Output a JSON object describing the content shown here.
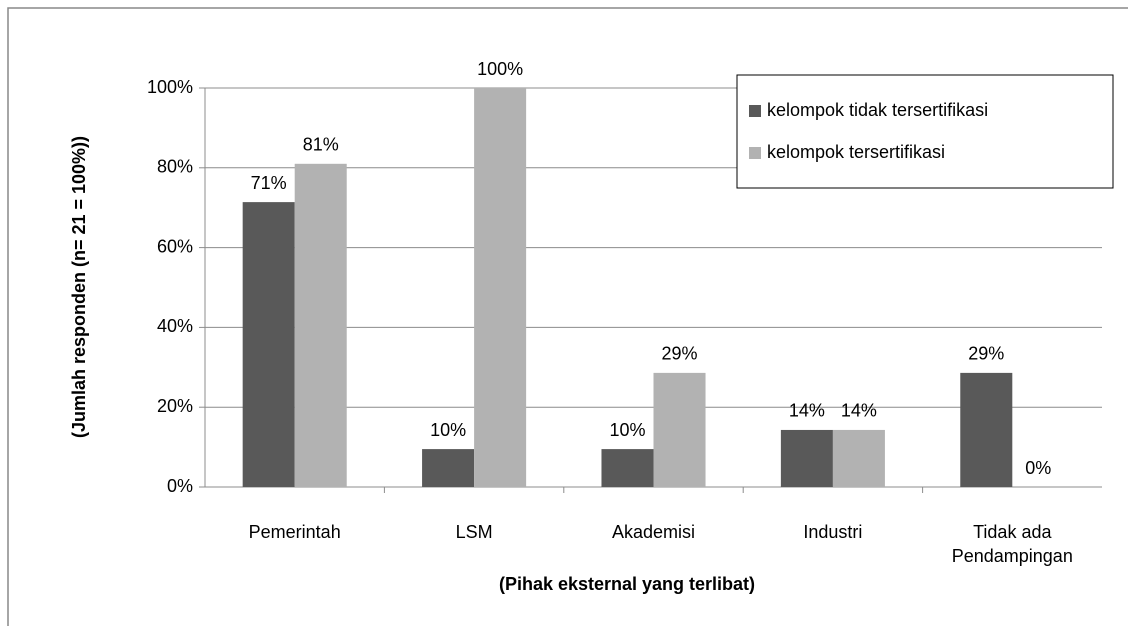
{
  "chart_data": {
    "type": "bar",
    "categories": [
      "Pemerintah",
      "LSM",
      "Akademisi",
      "Industri",
      "Tidak ada Pendampingan"
    ],
    "series": [
      {
        "name": "kelompok tidak tersertifikasi",
        "color": "#595959",
        "values": [
          71.4,
          9.5,
          9.5,
          14.3,
          28.6
        ],
        "value_labels": [
          "71%",
          "10%",
          "10%",
          "14%",
          "29%"
        ]
      },
      {
        "name": "kelompok tersertifikasi",
        "color": "#b2b2b2",
        "values": [
          81,
          100,
          28.6,
          14.3,
          0
        ],
        "value_labels": [
          "81%",
          "100%",
          "29%",
          "14%",
          "0%"
        ]
      }
    ],
    "ylim": [
      0,
      100
    ],
    "yticks": [
      {
        "value": 0,
        "label": "0%"
      },
      {
        "value": 20,
        "label": "20%"
      },
      {
        "value": 40,
        "label": "40%"
      },
      {
        "value": 60,
        "label": "60%"
      },
      {
        "value": 80,
        "label": "80%"
      },
      {
        "value": 100,
        "label": "100%"
      }
    ],
    "ylabel": "(Jumlah responden  (n= 21 = 100%))",
    "xlabel": "(Pihak eksternal yang terlibat)",
    "grid": true,
    "legend": "upper right"
  }
}
